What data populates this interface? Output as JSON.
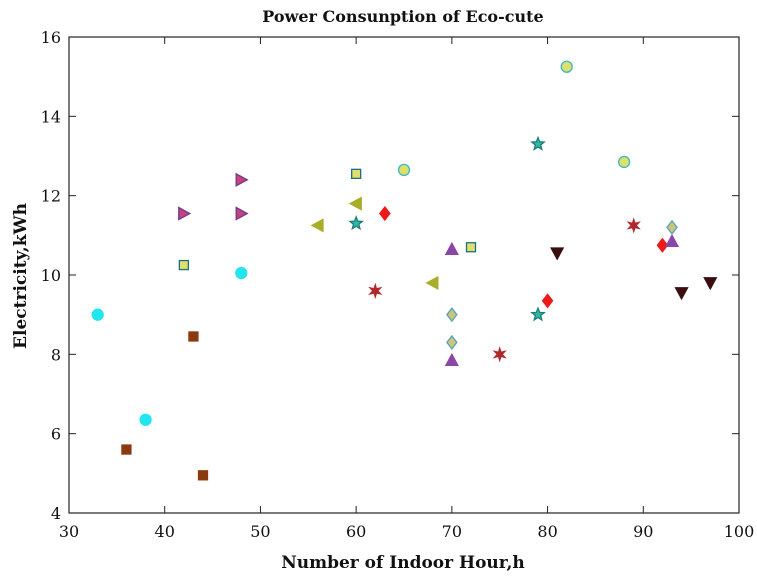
{
  "chart_data": {
    "type": "scatter",
    "title": "Power Consunption of Eco-cute",
    "xlabel": "Number of Indoor Hour,h",
    "ylabel": "Electricity,kWh",
    "xlim": [
      30,
      100
    ],
    "ylim": [
      4,
      16
    ],
    "xticks": [
      30,
      40,
      50,
      60,
      70,
      80,
      90,
      100
    ],
    "yticks": [
      4,
      6,
      8,
      10,
      12,
      14,
      16
    ],
    "grid": false,
    "series": [
      {
        "marker": "circle",
        "fill": "#22e5ee",
        "stroke": "#22e5ee",
        "points": [
          [
            33,
            9.0
          ],
          [
            38,
            6.35
          ],
          [
            48,
            10.05
          ]
        ]
      },
      {
        "marker": "square",
        "fill": "#8b3a0e",
        "stroke": "#8b3a0e",
        "points": [
          [
            36,
            5.6
          ],
          [
            43,
            8.45
          ],
          [
            44,
            4.95
          ]
        ]
      },
      {
        "marker": "triangle-right",
        "fill": "#c4437a",
        "stroke": "#6b3b8f",
        "points": [
          [
            42,
            11.55
          ],
          [
            48,
            12.4
          ],
          [
            48,
            11.55
          ]
        ]
      },
      {
        "marker": "square",
        "fill": "#dfe06a",
        "stroke": "#1f6e86",
        "points": [
          [
            42,
            10.25
          ],
          [
            60,
            12.55
          ],
          [
            72,
            10.7
          ]
        ]
      },
      {
        "marker": "triangle-left",
        "fill": "#a9ad28",
        "stroke": "#a9ad28",
        "points": [
          [
            56,
            11.25
          ],
          [
            60,
            11.8
          ],
          [
            68,
            9.8
          ]
        ]
      },
      {
        "marker": "star-5",
        "fill": "#2fb8a8",
        "stroke": "#1e7d74",
        "points": [
          [
            60,
            11.3
          ],
          [
            79,
            13.3
          ],
          [
            79,
            9.0
          ]
        ]
      },
      {
        "marker": "diamond",
        "fill": "#ee1a1a",
        "stroke": "#ee1a1a",
        "points": [
          [
            63,
            11.55
          ],
          [
            80,
            9.35
          ],
          [
            92,
            10.75
          ]
        ]
      },
      {
        "marker": "star-6",
        "fill": "#b0282c",
        "stroke": "#b0282c",
        "points": [
          [
            62,
            9.6
          ],
          [
            75,
            8.0
          ],
          [
            89,
            11.25
          ]
        ]
      },
      {
        "marker": "circle",
        "fill": "#dfe06a",
        "stroke": "#3ab8c8",
        "points": [
          [
            65,
            12.65
          ],
          [
            82,
            15.25
          ],
          [
            88,
            12.85
          ]
        ]
      },
      {
        "marker": "triangle-up",
        "fill": "#8a47a8",
        "stroke": "#8a47a8",
        "points": [
          [
            70,
            10.65
          ],
          [
            70,
            7.85
          ],
          [
            93,
            10.85
          ]
        ]
      },
      {
        "marker": "diamond",
        "fill": "#c9c878",
        "stroke": "#5aa0c0",
        "points": [
          [
            70,
            9.0
          ],
          [
            70,
            8.3
          ],
          [
            93,
            11.2
          ]
        ]
      },
      {
        "marker": "triangle-down",
        "fill": "#3a0e0e",
        "stroke": "#3a0e0e",
        "points": [
          [
            81,
            10.55
          ],
          [
            94,
            9.55
          ],
          [
            97,
            9.8
          ]
        ]
      }
    ]
  }
}
